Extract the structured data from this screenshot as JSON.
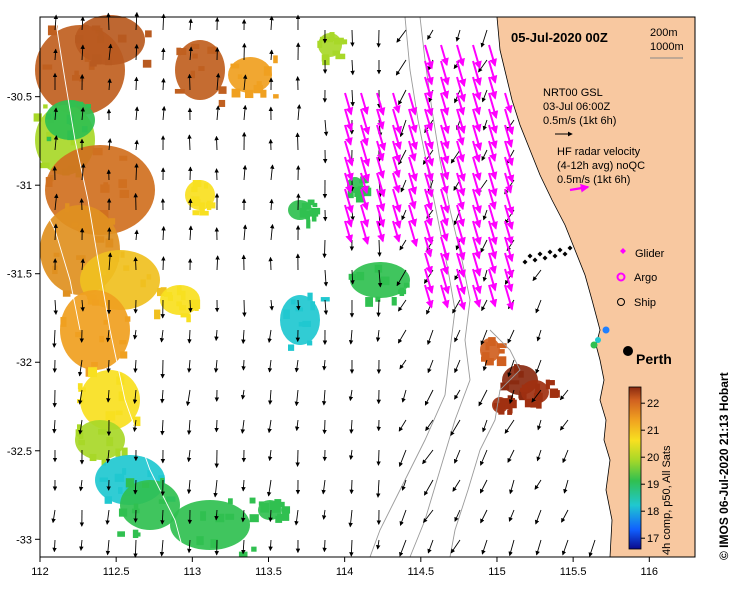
{
  "title": "05-Jul-2020 00Z",
  "scale": {
    "depth_a": "200m",
    "depth_b": "1000m"
  },
  "currents": {
    "gsl_line1": "NRT00 GSL",
    "gsl_line2": "03-Jul 06:00Z",
    "gsl_line3": "0.5m/s (1kt 6h)",
    "hf_line1": "HF radar velocity",
    "hf_line2": "(4-12h avg) noQC",
    "hf_line3": "0.5m/s (1kt 6h)"
  },
  "legend": {
    "glider": "Glider",
    "argo": "Argo",
    "ship": "Ship"
  },
  "city": {
    "name": "Perth"
  },
  "colorbar": {
    "label": "4h comp, p50, All Sats",
    "ticks": [
      "17",
      "18",
      "19",
      "20",
      "21",
      "22"
    ],
    "range": [
      16.6,
      22.6
    ]
  },
  "credit": "© IMOS 06-Jul-2020 21:13 Hobart",
  "axes": {
    "x_ticks": [
      "112",
      "112.5",
      "113",
      "113.5",
      "114",
      "114.5",
      "115",
      "115.5",
      "116"
    ],
    "y_ticks": [
      "-30.5",
      "-31",
      "-31.5",
      "-32",
      "-32.5",
      "-33"
    ],
    "x_range": [
      112,
      116.3
    ],
    "y_range": [
      -33.1,
      -30.05
    ]
  },
  "colors": {
    "land": "#f8c8a0",
    "hf_radar": "#ff00ff",
    "glider": "#000000",
    "text": "#000000"
  }
}
